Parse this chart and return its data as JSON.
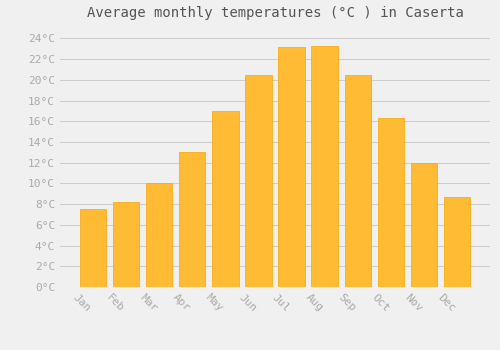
{
  "title": "Average monthly temperatures (°C ) in Caserta",
  "months": [
    "Jan",
    "Feb",
    "Mar",
    "Apr",
    "May",
    "Jun",
    "Jul",
    "Aug",
    "Sep",
    "Oct",
    "Nov",
    "Dec"
  ],
  "values": [
    7.5,
    8.2,
    10.0,
    13.0,
    17.0,
    20.5,
    23.2,
    23.3,
    20.5,
    16.3,
    12.0,
    8.7
  ],
  "bar_color": "#FFBB33",
  "bar_edge_color": "#FFA500",
  "background_color": "#F0F0F0",
  "grid_color": "#CCCCCC",
  "ylim": [
    0,
    25
  ],
  "yticks": [
    0,
    2,
    4,
    6,
    8,
    10,
    12,
    14,
    16,
    18,
    20,
    22,
    24
  ],
  "title_fontsize": 10,
  "tick_fontsize": 8,
  "tick_font_color": "#AAAAAA",
  "title_color": "#555555"
}
